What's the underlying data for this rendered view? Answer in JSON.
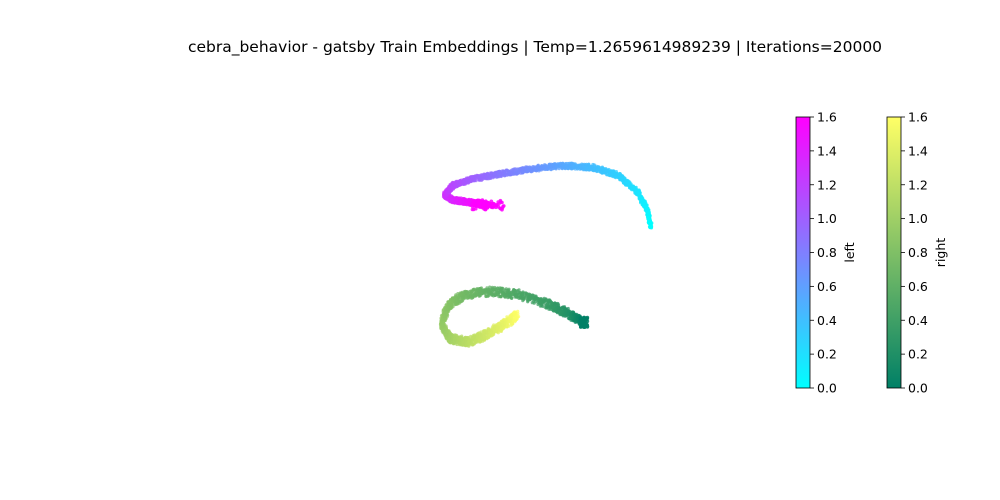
{
  "chart_data": {
    "type": "scatter",
    "title": "cebra_behavior - gatsby Train Embeddings | Temp=1.2659614989239 | Iterations=20000",
    "axes_visible": false,
    "series": [
      {
        "name": "left",
        "colormap": "cool",
        "points": [
          [
            -0.1,
            0.48,
            1.6
          ],
          [
            -0.18,
            0.49,
            1.55
          ],
          [
            -0.26,
            0.5,
            1.48
          ],
          [
            -0.34,
            0.51,
            1.4
          ],
          [
            -0.4,
            0.54,
            1.3
          ],
          [
            -0.34,
            0.6,
            1.15
          ],
          [
            -0.2,
            0.64,
            1.0
          ],
          [
            -0.02,
            0.67,
            0.85
          ],
          [
            0.2,
            0.7,
            0.7
          ],
          [
            0.42,
            0.72,
            0.55
          ],
          [
            0.62,
            0.71,
            0.42
          ],
          [
            0.8,
            0.66,
            0.3
          ],
          [
            0.93,
            0.56,
            0.18
          ],
          [
            1.0,
            0.44,
            0.08
          ],
          [
            1.02,
            0.35,
            0.0
          ]
        ]
      },
      {
        "name": "right",
        "colormap": "summer",
        "points": [
          [
            0.1,
            -0.2,
            1.6
          ],
          [
            0.0,
            -0.26,
            1.45
          ],
          [
            -0.12,
            -0.32,
            1.3
          ],
          [
            -0.24,
            -0.36,
            1.18
          ],
          [
            -0.36,
            -0.34,
            1.05
          ],
          [
            -0.42,
            -0.26,
            0.95
          ],
          [
            -0.38,
            -0.14,
            0.85
          ],
          [
            -0.26,
            -0.07,
            0.72
          ],
          [
            -0.08,
            -0.05,
            0.6
          ],
          [
            0.12,
            -0.07,
            0.48
          ],
          [
            0.32,
            -0.13,
            0.36
          ],
          [
            0.46,
            -0.19,
            0.22
          ],
          [
            0.56,
            -0.24,
            0.0
          ]
        ]
      }
    ],
    "colorbars": [
      {
        "label": "left",
        "colormap": "cool",
        "range": [
          0.0,
          1.6
        ],
        "ticks": [
          "0.0",
          "0.2",
          "0.4",
          "0.6",
          "0.8",
          "1.0",
          "1.2",
          "1.4",
          "1.6"
        ]
      },
      {
        "label": "right",
        "colormap": "summer",
        "range": [
          0.0,
          1.6
        ],
        "ticks": [
          "0.0",
          "0.2",
          "0.4",
          "0.6",
          "0.8",
          "1.0",
          "1.2",
          "1.4",
          "1.6"
        ]
      }
    ],
    "colors": {
      "cool_low": "#00ffff",
      "cool_high": "#ff00ff",
      "summer_low": "#008066",
      "summer_high": "#ffff66"
    }
  }
}
